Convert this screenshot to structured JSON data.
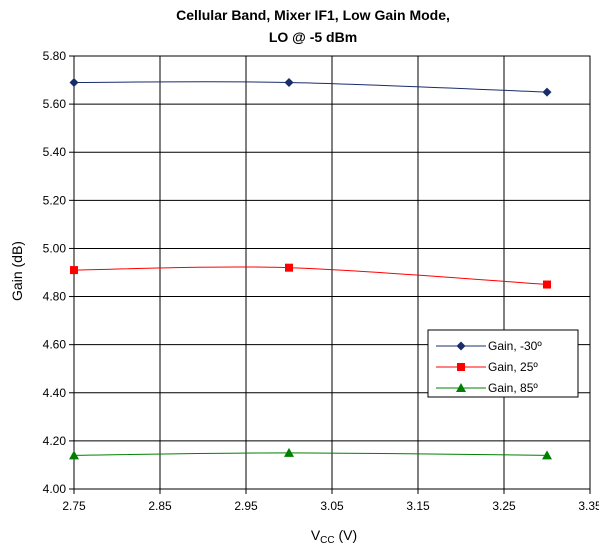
{
  "chart_data": {
    "type": "line",
    "title_lines": [
      "Cellular Band, Mixer IF1, Low Gain Mode,",
      "LO @ -5 dBm"
    ],
    "xlabel": {
      "main": "V",
      "sub": "CC",
      "unit": " (V)"
    },
    "ylabel": "Gain (dB)",
    "xlim": [
      2.75,
      3.35
    ],
    "ylim": [
      4.0,
      5.8
    ],
    "x_ticks": [
      "2.75",
      "2.85",
      "2.95",
      "3.05",
      "3.15",
      "3.25",
      "3.35"
    ],
    "y_ticks": [
      "4.00",
      "4.20",
      "4.40",
      "4.60",
      "4.80",
      "5.00",
      "5.20",
      "5.40",
      "5.60",
      "5.80"
    ],
    "grid": true,
    "legend_position": "right",
    "series": [
      {
        "name": "Gain, -30º",
        "color": "#1a2d6b",
        "marker": "diamond",
        "x": [
          2.75,
          3.0,
          3.3
        ],
        "y": [
          5.69,
          5.69,
          5.65
        ]
      },
      {
        "name": "Gain, 25º",
        "color": "#ff0000",
        "marker": "square",
        "x": [
          2.75,
          3.0,
          3.3
        ],
        "y": [
          4.91,
          4.92,
          4.85
        ]
      },
      {
        "name": "Gain, 85º",
        "color": "#008000",
        "marker": "triangle",
        "x": [
          2.75,
          3.0,
          3.3
        ],
        "y": [
          4.14,
          4.15,
          4.14
        ]
      }
    ]
  }
}
